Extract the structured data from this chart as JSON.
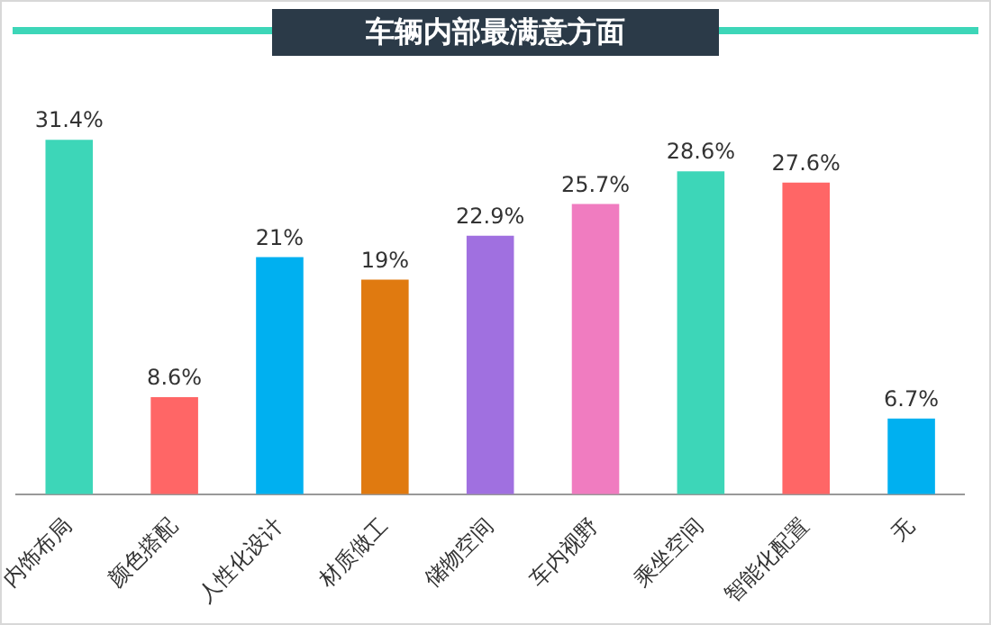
{
  "chart_data": {
    "type": "bar",
    "title": "车辆内部最满意方面",
    "categories": [
      "内饰布局",
      "颜色搭配",
      "人性化设计",
      "材质做工",
      "储物空间",
      "车内视野",
      "乘坐空间",
      "智能化配置",
      "无"
    ],
    "values": [
      31.4,
      8.6,
      21,
      19,
      22.9,
      25.7,
      28.6,
      27.6,
      6.7
    ],
    "colors": [
      "#3dd6b8",
      "#ff6666",
      "#00b0f0",
      "#e07a10",
      "#a070e0",
      "#f07cc0",
      "#3dd6b8",
      "#ff6666",
      "#00b0f0"
    ],
    "value_labels": [
      "31.4%",
      "8.6%",
      "21%",
      "19%",
      "22.9%",
      "25.7%",
      "28.6%",
      "27.6%",
      "6.7%"
    ],
    "grid": false,
    "legend": false
  }
}
